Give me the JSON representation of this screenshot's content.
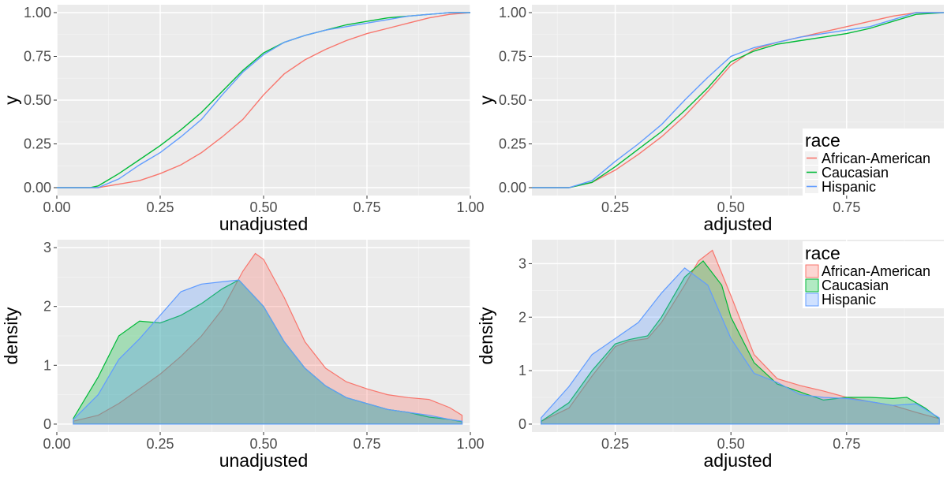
{
  "colors": {
    "panel": "#ebebeb",
    "grid_major": "#ffffff",
    "grid_minor": "#f4f4f4",
    "axis_text": "#4d4d4d",
    "title_text": "#000000",
    "legend_bg": "#ffffff",
    "series": {
      "African-American": "#f8766d",
      "Caucasian": "#00ba38",
      "Hispanic": "#619cff"
    }
  },
  "chart_data": [
    {
      "id": "ecdf-unadjusted",
      "type": "line",
      "subtype": "ecdf",
      "xlabel": "unadjusted",
      "ylabel": "y",
      "xlim": [
        0.0,
        1.0
      ],
      "ylim": [
        0.0,
        1.0
      ],
      "xticks": [
        0.0,
        0.25,
        0.5,
        0.75,
        1.0
      ],
      "xtick_labels": [
        "0.00",
        "0.25",
        "0.50",
        "0.75",
        "1.00"
      ],
      "yticks": [
        0.0,
        0.25,
        0.5,
        0.75,
        1.0
      ],
      "ytick_labels": [
        "0.00",
        "0.25",
        "0.50",
        "0.75",
        "1.00"
      ],
      "legend": null,
      "series": [
        {
          "name": "African-American",
          "x": [
            0.0,
            0.1,
            0.15,
            0.2,
            0.25,
            0.3,
            0.35,
            0.4,
            0.45,
            0.5,
            0.55,
            0.6,
            0.65,
            0.7,
            0.75,
            0.8,
            0.85,
            0.9,
            0.95,
            1.0
          ],
          "y": [
            0.0,
            0.0,
            0.02,
            0.04,
            0.08,
            0.13,
            0.2,
            0.29,
            0.39,
            0.53,
            0.65,
            0.73,
            0.79,
            0.84,
            0.88,
            0.91,
            0.94,
            0.97,
            0.99,
            1.0
          ]
        },
        {
          "name": "Caucasian",
          "x": [
            0.0,
            0.08,
            0.1,
            0.15,
            0.2,
            0.25,
            0.3,
            0.35,
            0.4,
            0.45,
            0.5,
            0.55,
            0.6,
            0.65,
            0.7,
            0.75,
            0.8,
            0.85,
            0.9,
            0.95,
            1.0
          ],
          "y": [
            0.0,
            0.0,
            0.01,
            0.08,
            0.16,
            0.24,
            0.33,
            0.43,
            0.55,
            0.67,
            0.77,
            0.83,
            0.87,
            0.9,
            0.93,
            0.95,
            0.97,
            0.98,
            0.99,
            1.0,
            1.0
          ]
        },
        {
          "name": "Hispanic",
          "x": [
            0.0,
            0.1,
            0.15,
            0.2,
            0.25,
            0.3,
            0.35,
            0.4,
            0.45,
            0.5,
            0.55,
            0.6,
            0.65,
            0.7,
            0.75,
            0.8,
            0.85,
            0.9,
            0.95,
            1.0
          ],
          "y": [
            0.0,
            0.0,
            0.05,
            0.13,
            0.2,
            0.29,
            0.39,
            0.53,
            0.66,
            0.76,
            0.83,
            0.87,
            0.9,
            0.92,
            0.94,
            0.96,
            0.98,
            0.99,
            1.0,
            1.0
          ]
        }
      ]
    },
    {
      "id": "ecdf-adjusted",
      "type": "line",
      "subtype": "ecdf",
      "xlabel": "adjusted",
      "ylabel": "y",
      "xlim": [
        0.07,
        0.96
      ],
      "ylim": [
        0.0,
        1.0
      ],
      "xticks": [
        0.25,
        0.5,
        0.75
      ],
      "xtick_labels": [
        "0.25",
        "0.50",
        "0.75"
      ],
      "yticks": [
        0.0,
        0.25,
        0.5,
        0.75,
        1.0
      ],
      "ytick_labels": [
        "0.00",
        "0.25",
        "0.50",
        "0.75",
        "1.00"
      ],
      "legend": {
        "title": "race",
        "position": "bottom-right",
        "key": "line",
        "entries": [
          "African-American",
          "Caucasian",
          "Hispanic"
        ]
      },
      "series": [
        {
          "name": "African-American",
          "x": [
            0.07,
            0.15,
            0.2,
            0.25,
            0.3,
            0.35,
            0.4,
            0.45,
            0.5,
            0.55,
            0.6,
            0.65,
            0.7,
            0.75,
            0.8,
            0.85,
            0.9,
            0.96
          ],
          "y": [
            0.0,
            0.0,
            0.03,
            0.1,
            0.19,
            0.29,
            0.41,
            0.55,
            0.7,
            0.79,
            0.83,
            0.86,
            0.89,
            0.92,
            0.95,
            0.98,
            1.0,
            1.0
          ]
        },
        {
          "name": "Caucasian",
          "x": [
            0.07,
            0.15,
            0.2,
            0.25,
            0.3,
            0.35,
            0.4,
            0.45,
            0.5,
            0.55,
            0.6,
            0.65,
            0.7,
            0.75,
            0.8,
            0.85,
            0.9,
            0.96
          ],
          "y": [
            0.0,
            0.0,
            0.03,
            0.12,
            0.22,
            0.32,
            0.44,
            0.57,
            0.72,
            0.78,
            0.82,
            0.84,
            0.86,
            0.88,
            0.91,
            0.95,
            0.99,
            1.0
          ]
        },
        {
          "name": "Hispanic",
          "x": [
            0.07,
            0.15,
            0.2,
            0.25,
            0.3,
            0.35,
            0.4,
            0.45,
            0.5,
            0.55,
            0.6,
            0.65,
            0.7,
            0.75,
            0.8,
            0.85,
            0.9,
            0.96
          ],
          "y": [
            0.0,
            0.0,
            0.04,
            0.15,
            0.25,
            0.36,
            0.5,
            0.63,
            0.75,
            0.8,
            0.83,
            0.86,
            0.88,
            0.9,
            0.92,
            0.96,
            1.0,
            1.0
          ]
        }
      ]
    },
    {
      "id": "density-unadjusted",
      "type": "area",
      "subtype": "density",
      "xlabel": "unadjusted",
      "ylabel": "density",
      "xlim": [
        0.0,
        1.0
      ],
      "ylim": [
        0.0,
        3.0
      ],
      "xticks": [
        0.0,
        0.25,
        0.5,
        0.75,
        1.0
      ],
      "xtick_labels": [
        "0.00",
        "0.25",
        "0.50",
        "0.75",
        "1.00"
      ],
      "yticks": [
        0,
        1,
        2,
        3
      ],
      "ytick_labels": [
        "0",
        "1",
        "2",
        "3"
      ],
      "legend": null,
      "series": [
        {
          "name": "African-American",
          "x": [
            0.04,
            0.1,
            0.15,
            0.2,
            0.25,
            0.3,
            0.35,
            0.4,
            0.45,
            0.48,
            0.5,
            0.55,
            0.6,
            0.65,
            0.7,
            0.75,
            0.8,
            0.85,
            0.9,
            0.95,
            0.98
          ],
          "y": [
            0.05,
            0.15,
            0.35,
            0.6,
            0.85,
            1.15,
            1.5,
            1.95,
            2.6,
            2.9,
            2.8,
            2.15,
            1.4,
            0.95,
            0.72,
            0.6,
            0.5,
            0.45,
            0.42,
            0.28,
            0.15
          ]
        },
        {
          "name": "Caucasian",
          "x": [
            0.04,
            0.1,
            0.15,
            0.2,
            0.25,
            0.3,
            0.35,
            0.4,
            0.44,
            0.5,
            0.55,
            0.6,
            0.65,
            0.7,
            0.75,
            0.8,
            0.85,
            0.9,
            0.95,
            0.98
          ],
          "y": [
            0.1,
            0.8,
            1.5,
            1.75,
            1.72,
            1.85,
            2.05,
            2.3,
            2.45,
            2.0,
            1.4,
            0.95,
            0.65,
            0.45,
            0.35,
            0.25,
            0.2,
            0.12,
            0.08,
            0.04
          ]
        },
        {
          "name": "Hispanic",
          "x": [
            0.04,
            0.1,
            0.15,
            0.2,
            0.25,
            0.3,
            0.35,
            0.4,
            0.44,
            0.5,
            0.55,
            0.6,
            0.65,
            0.7,
            0.75,
            0.8,
            0.85,
            0.9,
            0.95,
            0.98
          ],
          "y": [
            0.08,
            0.5,
            1.1,
            1.45,
            1.85,
            2.25,
            2.38,
            2.42,
            2.45,
            2.0,
            1.4,
            0.95,
            0.65,
            0.45,
            0.35,
            0.25,
            0.2,
            0.15,
            0.08,
            0.05
          ]
        }
      ]
    },
    {
      "id": "density-adjusted",
      "type": "area",
      "subtype": "density",
      "xlabel": "adjusted",
      "ylabel": "density",
      "xlim": [
        0.07,
        0.96
      ],
      "ylim": [
        0.0,
        3.3
      ],
      "xticks": [
        0.25,
        0.5,
        0.75
      ],
      "xtick_labels": [
        "0.25",
        "0.50",
        "0.75"
      ],
      "yticks": [
        0,
        1,
        2,
        3
      ],
      "ytick_labels": [
        "0",
        "1",
        "2",
        "3"
      ],
      "legend": {
        "title": "race",
        "position": "top-right",
        "key": "fill",
        "entries": [
          "African-American",
          "Caucasian",
          "Hispanic"
        ]
      },
      "series": [
        {
          "name": "African-American",
          "x": [
            0.09,
            0.15,
            0.2,
            0.25,
            0.28,
            0.32,
            0.35,
            0.4,
            0.43,
            0.46,
            0.5,
            0.55,
            0.6,
            0.65,
            0.7,
            0.75,
            0.8,
            0.85,
            0.9,
            0.95
          ],
          "y": [
            0.05,
            0.3,
            0.9,
            1.45,
            1.55,
            1.6,
            1.9,
            2.6,
            3.05,
            3.25,
            2.4,
            1.3,
            0.85,
            0.72,
            0.62,
            0.5,
            0.42,
            0.35,
            0.22,
            0.1
          ]
        },
        {
          "name": "Caucasian",
          "x": [
            0.09,
            0.15,
            0.2,
            0.25,
            0.28,
            0.32,
            0.35,
            0.4,
            0.44,
            0.48,
            0.5,
            0.55,
            0.6,
            0.65,
            0.7,
            0.75,
            0.8,
            0.85,
            0.88,
            0.92,
            0.95
          ],
          "y": [
            0.05,
            0.4,
            1.0,
            1.5,
            1.58,
            1.65,
            2.0,
            2.75,
            3.05,
            2.6,
            2.0,
            1.15,
            0.75,
            0.6,
            0.45,
            0.5,
            0.5,
            0.48,
            0.5,
            0.3,
            0.1
          ]
        },
        {
          "name": "Hispanic",
          "x": [
            0.09,
            0.15,
            0.2,
            0.25,
            0.3,
            0.35,
            0.4,
            0.45,
            0.5,
            0.55,
            0.6,
            0.65,
            0.7,
            0.75,
            0.8,
            0.85,
            0.9,
            0.95
          ],
          "y": [
            0.12,
            0.7,
            1.3,
            1.6,
            1.9,
            2.45,
            2.92,
            2.6,
            1.6,
            0.95,
            0.78,
            0.55,
            0.5,
            0.48,
            0.42,
            0.35,
            0.38,
            0.12
          ]
        }
      ]
    }
  ]
}
